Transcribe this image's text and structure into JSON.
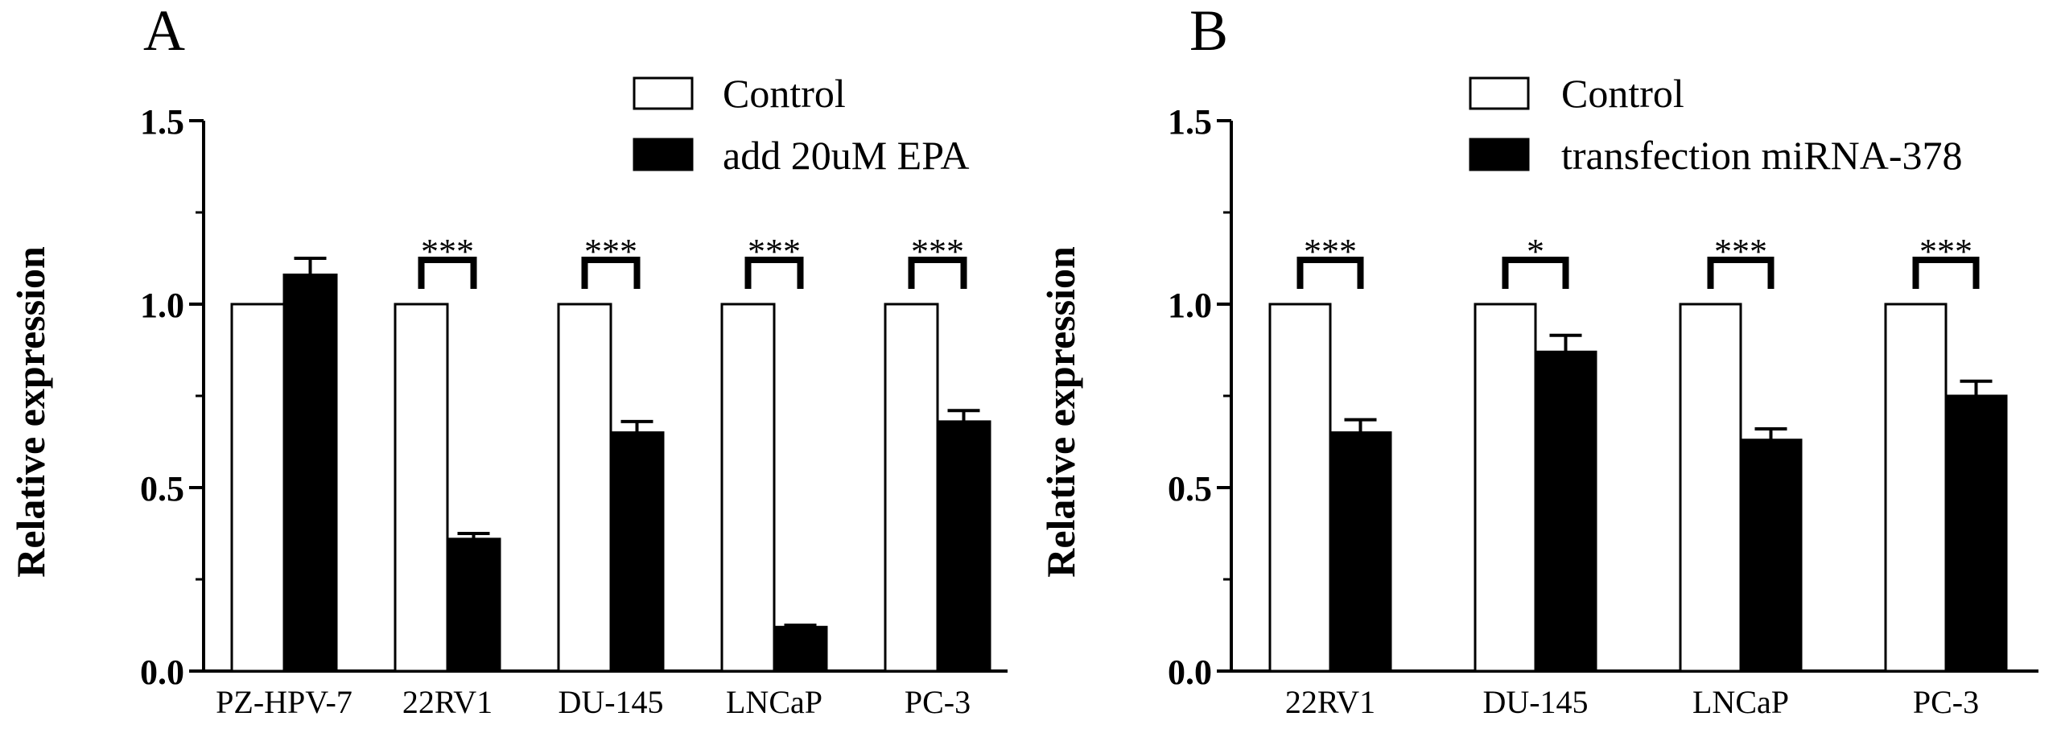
{
  "colors": {
    "control_fill": "#ffffff",
    "treatment_fill": "#000000",
    "stroke": "#000000"
  },
  "chart_data": [
    {
      "panel_label": "A",
      "type": "bar",
      "ylabel": "Relative expression",
      "ylim": [
        0,
        1.5
      ],
      "yticks": [
        "0.0",
        "0.5",
        "1.0",
        "1.5"
      ],
      "categories": [
        "PZ-HPV-7",
        "22RV1",
        "DU-145",
        "LNCaP",
        "PC-3"
      ],
      "series": [
        {
          "name": "Control",
          "values": [
            1.0,
            1.0,
            1.0,
            1.0,
            1.0
          ],
          "errors": [
            0,
            0,
            0,
            0,
            0
          ]
        },
        {
          "name": "add 20uM EPA",
          "values": [
            1.08,
            0.36,
            0.65,
            0.12,
            0.68
          ],
          "errors": [
            0.045,
            0.015,
            0.03,
            0.005,
            0.03
          ]
        }
      ],
      "significance": [
        "",
        "***",
        "***",
        "***",
        "***"
      ],
      "legend": [
        "Control",
        "add 20uM EPA"
      ]
    },
    {
      "panel_label": "B",
      "type": "bar",
      "ylabel": "Relative expression",
      "ylim": [
        0,
        1.5
      ],
      "yticks": [
        "0.0",
        "0.5",
        "1.0",
        "1.5"
      ],
      "categories": [
        "22RV1",
        "DU-145",
        "LNCaP",
        "PC-3"
      ],
      "series": [
        {
          "name": "Control",
          "values": [
            1.0,
            1.0,
            1.0,
            1.0
          ],
          "errors": [
            0,
            0,
            0,
            0
          ]
        },
        {
          "name": "transfection miRNA-378",
          "values": [
            0.65,
            0.87,
            0.63,
            0.75
          ],
          "errors": [
            0.035,
            0.045,
            0.03,
            0.04
          ]
        }
      ],
      "significance": [
        "***",
        "*",
        "***",
        "***"
      ],
      "legend": [
        "Control",
        "transfection miRNA-378"
      ]
    }
  ]
}
